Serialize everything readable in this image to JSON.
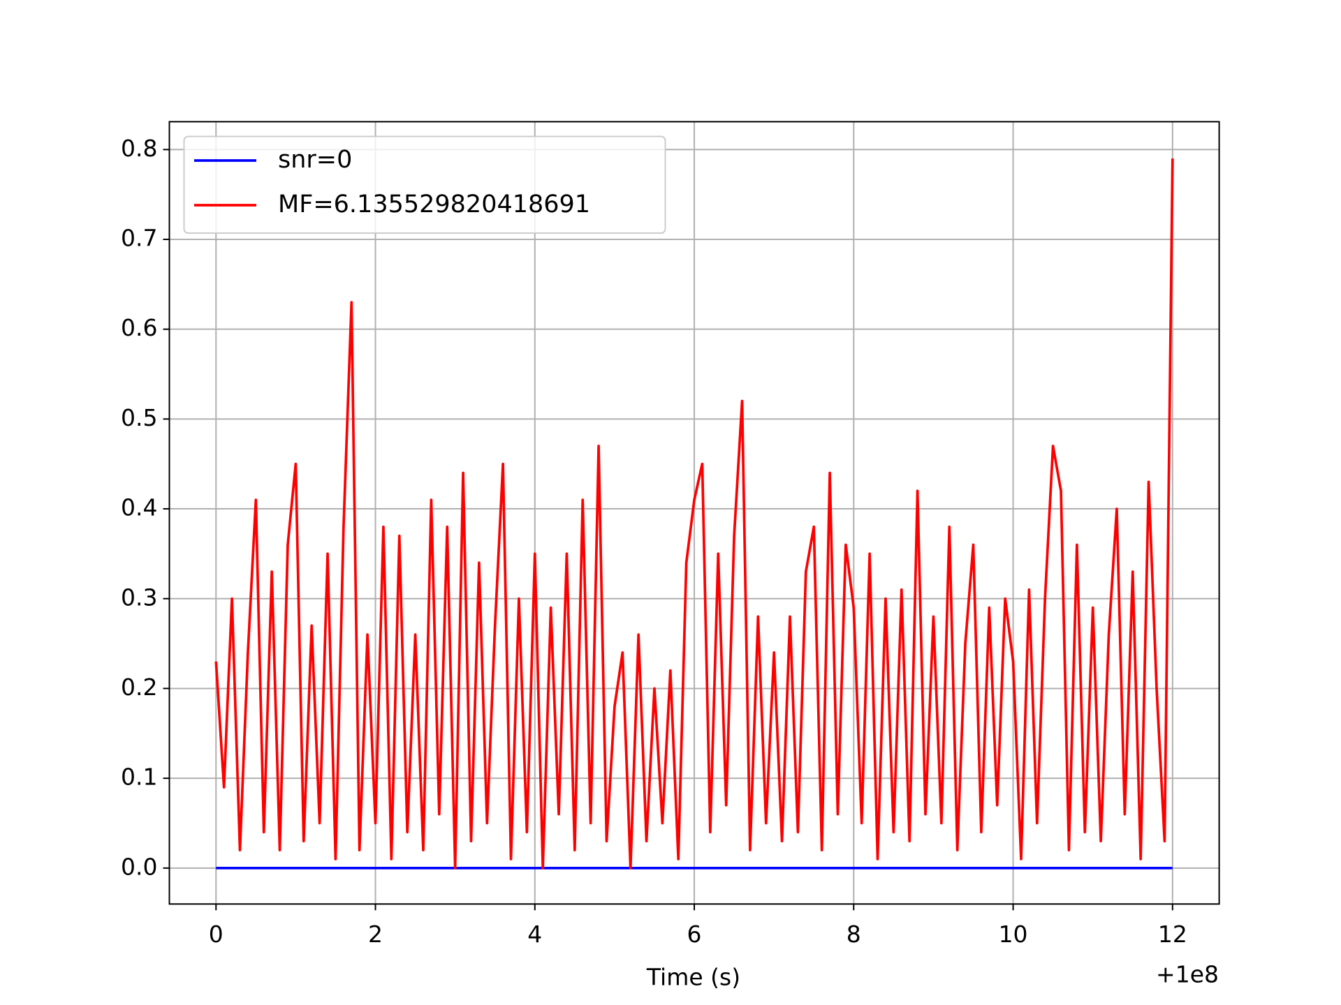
{
  "chart_data": {
    "type": "line",
    "xlabel": "Time (s)",
    "x_offset_label": "+1e8",
    "xlim": [
      -0.585,
      12.585
    ],
    "ylim": [
      -0.04,
      0.831
    ],
    "xticks": [
      0,
      2,
      4,
      6,
      8,
      10,
      12
    ],
    "yticks": [
      {
        "value": 0,
        "label": "0.0"
      },
      0.1,
      0.2,
      0.3,
      0.4,
      0.5,
      0.6,
      0.7,
      0.8
    ],
    "grid": true,
    "legend": "upper left",
    "series": [
      {
        "name": "snr=0",
        "color": "#0000ff",
        "x": [
          0,
          12
        ],
        "values": [
          0,
          0
        ]
      },
      {
        "name": "MF=6.135529820418691",
        "color": "#ff0000",
        "x": [
          0,
          0.1,
          0.2,
          0.3,
          0.4,
          0.5,
          0.6,
          0.7,
          0.8,
          0.9,
          1,
          1.1,
          1.2,
          1.3,
          1.4,
          1.5,
          1.6,
          1.7,
          1.8,
          1.9,
          2,
          2.1,
          2.2,
          2.3,
          2.4,
          2.5,
          2.6,
          2.7,
          2.8,
          2.9,
          3,
          3.1,
          3.2,
          3.3,
          3.4,
          3.5,
          3.6,
          3.7,
          3.8,
          3.9,
          4,
          4.1,
          4.2,
          4.3,
          4.4,
          4.5,
          4.6,
          4.7,
          4.8,
          4.9,
          5,
          5.1,
          5.2,
          5.3,
          5.4,
          5.5,
          5.6,
          5.7,
          5.8,
          5.9,
          6,
          6.1,
          6.2,
          6.3,
          6.4,
          6.5,
          6.6,
          6.7,
          6.8,
          6.9,
          7,
          7.1,
          7.2,
          7.3,
          7.4,
          7.5,
          7.6,
          7.7,
          7.8,
          7.9,
          8,
          8.1,
          8.2,
          8.3,
          8.4,
          8.5,
          8.6,
          8.7,
          8.8,
          8.9,
          9,
          9.1,
          9.2,
          9.3,
          9.4,
          9.5,
          9.6,
          9.7,
          9.8,
          9.9,
          10,
          10.1,
          10.2,
          10.3,
          10.4,
          10.5,
          10.6,
          10.7,
          10.8,
          10.9,
          11,
          11.1,
          11.2,
          11.3,
          11.4,
          11.5,
          11.6,
          11.7,
          11.8,
          11.9,
          12
        ],
        "values": [
          0.23,
          0.09,
          0.3,
          0.02,
          0.24,
          0.41,
          0.04,
          0.33,
          0.02,
          0.36,
          0.45,
          0.03,
          0.27,
          0.05,
          0.35,
          0.01,
          0.38,
          0.63,
          0.02,
          0.26,
          0.05,
          0.38,
          0.01,
          0.37,
          0.04,
          0.26,
          0.02,
          0.41,
          0.06,
          0.38,
          0.0,
          0.44,
          0.03,
          0.34,
          0.05,
          0.27,
          0.45,
          0.01,
          0.3,
          0.04,
          0.35,
          0.0,
          0.29,
          0.06,
          0.35,
          0.02,
          0.41,
          0.05,
          0.47,
          0.03,
          0.18,
          0.24,
          0.0,
          0.26,
          0.03,
          0.2,
          0.05,
          0.22,
          0.01,
          0.34,
          0.41,
          0.45,
          0.04,
          0.35,
          0.07,
          0.37,
          0.52,
          0.02,
          0.28,
          0.05,
          0.24,
          0.03,
          0.28,
          0.04,
          0.33,
          0.38,
          0.02,
          0.44,
          0.06,
          0.36,
          0.29,
          0.05,
          0.35,
          0.01,
          0.3,
          0.04,
          0.31,
          0.03,
          0.42,
          0.06,
          0.28,
          0.05,
          0.38,
          0.02,
          0.25,
          0.36,
          0.04,
          0.29,
          0.07,
          0.3,
          0.23,
          0.01,
          0.31,
          0.05,
          0.3,
          0.47,
          0.42,
          0.02,
          0.36,
          0.04,
          0.29,
          0.03,
          0.26,
          0.4,
          0.06,
          0.33,
          0.01,
          0.43,
          0.2,
          0.03,
          0.79
        ]
      }
    ]
  }
}
